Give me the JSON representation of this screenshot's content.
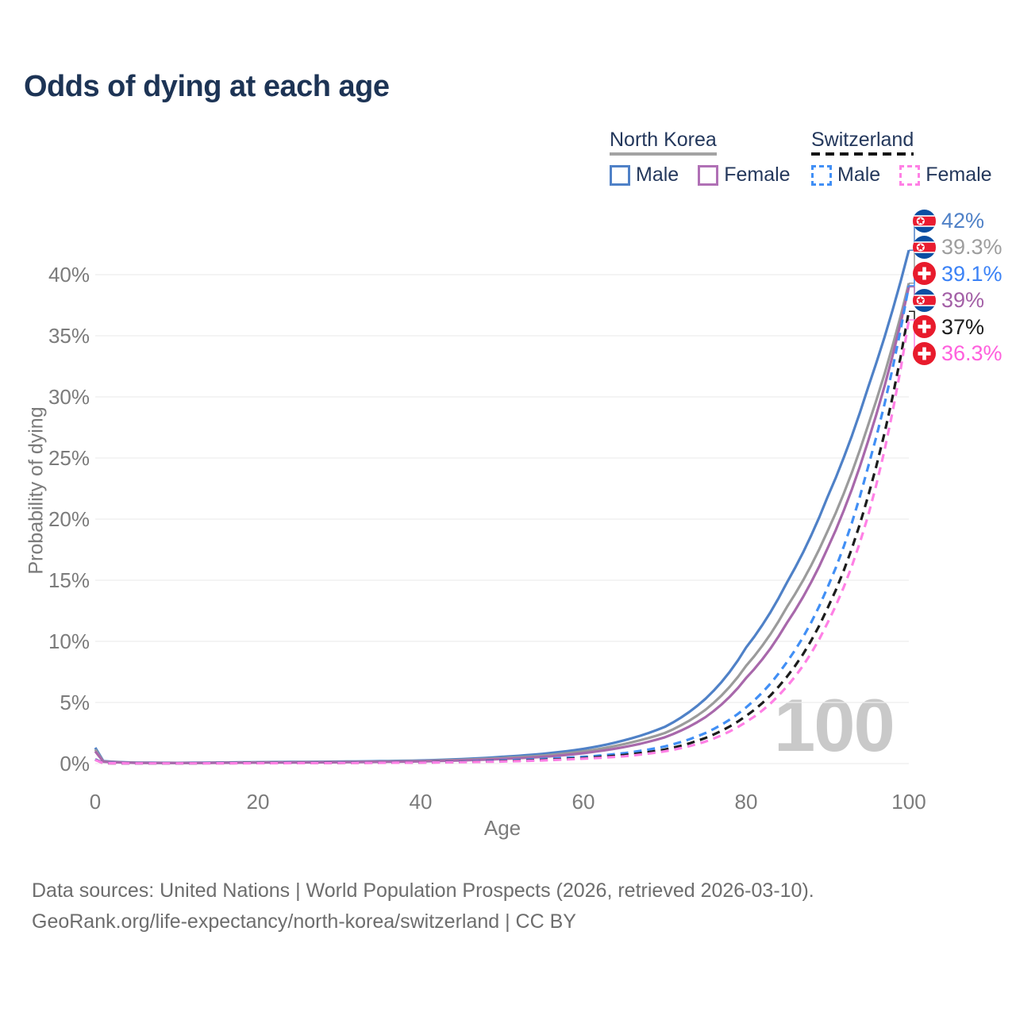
{
  "title": "Odds of dying at each age",
  "legend": {
    "groups": [
      {
        "name": "North Korea",
        "underline_style": "solid",
        "underline_color": "#a3a3a3",
        "items": [
          {
            "label": "Male",
            "color": "#4f81c7",
            "dashed": false
          },
          {
            "label": "Female",
            "color": "#b070b5",
            "dashed": false
          }
        ]
      },
      {
        "name": "Switzerland",
        "underline_style": "dashed",
        "underline_color": "#141414",
        "items": [
          {
            "label": "Male",
            "color": "#418ff5",
            "dashed": true
          },
          {
            "label": "Female",
            "color": "#ff80e5",
            "dashed": true
          }
        ]
      }
    ]
  },
  "chart_data": {
    "type": "line",
    "title": "Odds of dying at each age",
    "xlabel": "Age",
    "ylabel": "Probability of dying",
    "xlim": [
      0,
      100
    ],
    "ylim": [
      0,
      44
    ],
    "grid": true,
    "x_ticks": [
      0,
      20,
      40,
      60,
      80,
      100
    ],
    "y_ticks": [
      "0%",
      "5%",
      "10%",
      "15%",
      "20%",
      "25%",
      "30%",
      "35%",
      "40%"
    ],
    "watermark": "100",
    "ages": [
      0,
      1,
      5,
      10,
      20,
      30,
      40,
      50,
      55,
      60,
      65,
      70,
      75,
      80,
      85,
      90,
      95,
      100
    ],
    "series": [
      {
        "name": "North Korea Male",
        "country": "north-korea",
        "sex": "male",
        "style": "solid",
        "color": "#4f81c7",
        "label_color": "#4f81c7",
        "end_label": "42%",
        "end_value": 42,
        "values": [
          1.3,
          0.2,
          0.08,
          0.06,
          0.12,
          0.16,
          0.25,
          0.55,
          0.8,
          1.2,
          1.9,
          3.0,
          5.3,
          9.5,
          14.8,
          21.8,
          30.8,
          42.0
        ]
      },
      {
        "name": "North Korea Both sexes",
        "country": "north-korea",
        "sex": "both",
        "style": "solid",
        "color": "#9b9b9b",
        "label_color": "#9e9e9e",
        "end_label": "39.3%",
        "end_value": 39.3,
        "values": [
          1.15,
          0.17,
          0.07,
          0.05,
          0.1,
          0.13,
          0.21,
          0.45,
          0.65,
          1.0,
          1.6,
          2.5,
          4.4,
          8.0,
          12.8,
          19.0,
          27.7,
          39.3
        ]
      },
      {
        "name": "North Korea Female",
        "country": "north-korea",
        "sex": "female",
        "style": "solid",
        "color": "#a868ab",
        "label_color": "#a35fa6",
        "end_label": "39%",
        "end_value": 39,
        "values": [
          1.0,
          0.15,
          0.06,
          0.05,
          0.08,
          0.11,
          0.18,
          0.38,
          0.55,
          0.85,
          1.35,
          2.15,
          3.8,
          7.0,
          11.5,
          17.6,
          26.4,
          39.0
        ]
      },
      {
        "name": "Switzerland Male",
        "country": "switzerland",
        "sex": "male",
        "style": "dashed",
        "color": "#418ff5",
        "label_color": "#3b82f6",
        "end_label": "39.1%",
        "end_value": 39.1,
        "values": [
          0.35,
          0.04,
          0.03,
          0.03,
          0.05,
          0.07,
          0.1,
          0.25,
          0.38,
          0.55,
          0.85,
          1.4,
          2.5,
          4.6,
          8.3,
          14.4,
          24.3,
          39.1
        ]
      },
      {
        "name": "Switzerland Both sexes",
        "country": "switzerland",
        "sex": "both",
        "style": "dashed",
        "color": "#1c1c1c",
        "label_color": "#1c1c1c",
        "end_label": "37%",
        "end_value": 37,
        "values": [
          0.32,
          0.03,
          0.025,
          0.025,
          0.04,
          0.06,
          0.09,
          0.2,
          0.3,
          0.45,
          0.7,
          1.15,
          2.1,
          3.9,
          7.1,
          12.7,
          21.9,
          37.0
        ]
      },
      {
        "name": "Switzerland Female",
        "country": "switzerland",
        "sex": "female",
        "style": "dashed",
        "color": "#ff80e5",
        "label_color": "#ff5fdd",
        "end_label": "36.3%",
        "end_value": 36.3,
        "values": [
          0.3,
          0.03,
          0.02,
          0.02,
          0.03,
          0.05,
          0.08,
          0.17,
          0.26,
          0.4,
          0.6,
          1.0,
          1.8,
          3.4,
          6.3,
          11.5,
          20.3,
          36.3
        ]
      }
    ],
    "flag_colors": {
      "north_korea_blue": "#0b4ea2",
      "north_korea_red": "#ea1c30",
      "switzerland_red": "#e81b2c"
    }
  },
  "footer": {
    "line1": "Data sources: United Nations | World Population Prospects (2026, retrieved 2026-03-10).",
    "line2": "GeoRank.org/life-expectancy/north-korea/switzerland | CC BY"
  }
}
